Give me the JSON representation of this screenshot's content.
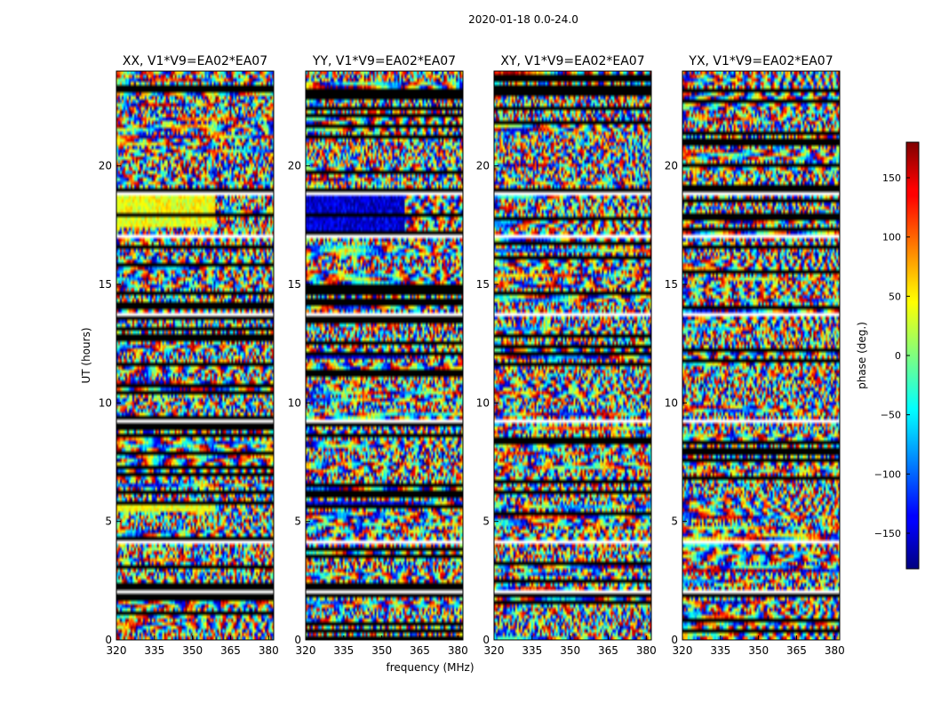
{
  "chart_data": {
    "type": "heatmap",
    "suptitle": "2020-01-18 0.0-24.0",
    "panels": [
      {
        "title": "XX, V1*V9=EA02*EA07",
        "seed": 11,
        "bias": 40,
        "bands": [
          [
            17.4,
            18.8
          ],
          [
            5.4,
            5.8
          ]
        ]
      },
      {
        "title": "YY, V1*V9=EA02*EA07",
        "seed": 23,
        "bias": -150,
        "bands": [
          [
            17.2,
            18.8
          ],
          [
            5.5,
            5.8
          ],
          [
            11.8,
            12.2
          ]
        ]
      },
      {
        "title": "XY, V1*V9=EA02*EA07",
        "seed": 37,
        "bias": 0,
        "bands": []
      },
      {
        "title": "YX, V1*V9=EA02*EA07",
        "seed": 53,
        "bias": 0,
        "bands": []
      }
    ],
    "x": {
      "label": "frequency (MHz)",
      "range": [
        320,
        382
      ],
      "ticks": [
        320,
        335,
        350,
        365,
        380
      ]
    },
    "y": {
      "label": "UT (hours)",
      "range": [
        0,
        24
      ],
      "ticks": [
        0,
        5,
        10,
        15,
        20
      ]
    },
    "colorbar": {
      "label": "phase (deg.)",
      "range": [
        -180,
        180
      ],
      "ticks": [
        -150,
        -100,
        -50,
        0,
        50,
        100,
        150
      ],
      "tick_labels": [
        "−150",
        "−100",
        "−50",
        "0",
        "50",
        "100",
        "150"
      ],
      "colormap": "jet"
    },
    "gap_rows_hours": [
      [
        1.75,
        2.05
      ],
      [
        2.25,
        2.3
      ],
      [
        3.4,
        3.5
      ],
      [
        4.0,
        4.2
      ],
      [
        5.8,
        5.9
      ],
      [
        9.2,
        9.3
      ],
      [
        11.35,
        11.45
      ],
      [
        13.65,
        13.8
      ],
      [
        17.0,
        17.1
      ],
      [
        18.8,
        19.0
      ],
      [
        23.1,
        23.2
      ]
    ]
  }
}
